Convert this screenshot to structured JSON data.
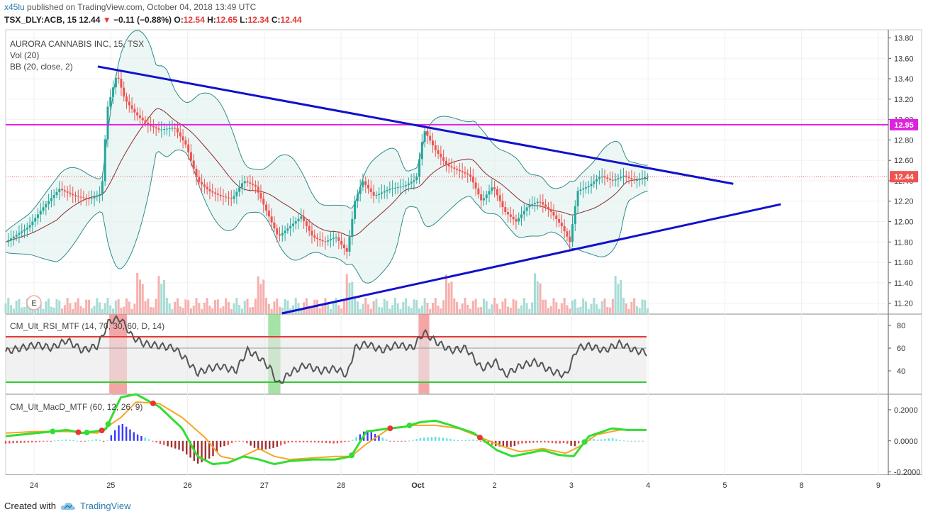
{
  "header": {
    "user": "x45lu",
    "published": "published on TradingView.com, October 04, 2018 13:49 UTC",
    "symbol": "TSX_DLY:ACB, 15",
    "last": "12.44",
    "change": "−0.11 (−0.88%)",
    "o_label": "O:",
    "o_value": "12.54",
    "h_label": "H:",
    "h_value": "12.65",
    "l_label": "L:",
    "l_value": "12.34",
    "c_label": "C:",
    "c_value": "12.44"
  },
  "main_legend": [
    "AURORA CANNABIS INC, 15, TSX",
    "Vol (20)",
    "BB (20, close, 2)"
  ],
  "rsi_legend": "CM_Ult_RSI_MTF (14, 70, 30, 60, D, 14)",
  "macd_legend": "CM_Ult_MacD_MTF (60, 12, 26, 9)",
  "earnings_badge": "E",
  "footer": {
    "created_with": "Created with",
    "brand": "TradingView"
  },
  "colors": {
    "up": "#26a69a",
    "down": "#ef5350",
    "trend": "#1111cc",
    "resistance": "#e020e0",
    "bb": "#2e8b8b",
    "rsi": "#555555",
    "macd_fast": "#33dd33",
    "macd_slow": "#f5a623"
  },
  "chart_data": [
    {
      "type": "candlestick",
      "title": "AURORA CANNABIS INC, 15, TSX",
      "x_ticks": [
        "24",
        "25",
        "26",
        "27",
        "28",
        "Oct",
        "2",
        "3",
        "4",
        "5",
        "8",
        "9"
      ],
      "y_ticks": [
        "11.20",
        "11.40",
        "11.60",
        "11.80",
        "12.00",
        "12.20",
        "12.40",
        "12.60",
        "12.80",
        "13.00",
        "13.20",
        "13.40",
        "13.60",
        "13.80"
      ],
      "ylim": [
        11.1,
        13.88
      ],
      "last_price_label": "12.44",
      "resistance_label": "12.95",
      "resistance_level": 12.95,
      "last_price": 12.44,
      "close_path": [
        [
          0,
          11.8
        ],
        [
          3,
          11.95
        ],
        [
          5,
          12.15
        ],
        [
          7,
          12.32
        ],
        [
          9,
          12.25
        ],
        [
          11,
          12.22
        ],
        [
          12.5,
          12.28
        ],
        [
          13.2,
          13.1
        ],
        [
          14.5,
          13.45
        ],
        [
          15.5,
          13.2
        ],
        [
          17,
          13.05
        ],
        [
          18.5,
          12.95
        ],
        [
          20,
          12.9
        ],
        [
          22,
          12.92
        ],
        [
          23.5,
          12.75
        ],
        [
          25,
          12.4
        ],
        [
          26.5,
          12.3
        ],
        [
          28,
          12.25
        ],
        [
          29.5,
          12.22
        ],
        [
          31,
          12.4
        ],
        [
          32.5,
          12.35
        ],
        [
          34,
          12.1
        ],
        [
          35.5,
          11.85
        ],
        [
          37,
          11.95
        ],
        [
          38.5,
          12.05
        ],
        [
          40,
          11.85
        ],
        [
          41.5,
          11.8
        ],
        [
          43,
          11.85
        ],
        [
          44.5,
          11.7
        ],
        [
          45.5,
          12.2
        ],
        [
          46.5,
          12.4
        ],
        [
          48,
          12.25
        ],
        [
          50,
          12.32
        ],
        [
          52,
          12.35
        ],
        [
          53.5,
          12.42
        ],
        [
          54.5,
          12.9
        ],
        [
          56,
          12.7
        ],
        [
          57.5,
          12.55
        ],
        [
          59,
          12.5
        ],
        [
          60.5,
          12.45
        ],
        [
          62,
          12.2
        ],
        [
          63.5,
          12.35
        ],
        [
          65,
          12.1
        ],
        [
          66.5,
          12.0
        ],
        [
          68,
          12.15
        ],
        [
          69.5,
          12.2
        ],
        [
          71,
          12.1
        ],
        [
          72.5,
          11.95
        ],
        [
          73.5,
          11.8
        ],
        [
          74.5,
          12.3
        ],
        [
          76,
          12.35
        ],
        [
          77.5,
          12.45
        ],
        [
          79,
          12.4
        ],
        [
          80.5,
          12.45
        ],
        [
          82,
          12.4
        ],
        [
          83.5,
          12.44
        ]
      ],
      "xlim_units": [
        0,
        115
      ],
      "day_positions": [
        3.7,
        13.7,
        23.7,
        33.7,
        43.7,
        53.7,
        63.7,
        73.7,
        83.7,
        93.7,
        103.7,
        113.7
      ]
    },
    {
      "type": "line",
      "title": "CM_Ult_RSI_MTF (14, 70, 30, 60, D, 14)",
      "y_ticks": [
        "40",
        "60",
        "80"
      ],
      "ylim": [
        20,
        90
      ],
      "bands": [
        30,
        60,
        70
      ],
      "values": [
        [
          0,
          57
        ],
        [
          2,
          60
        ],
        [
          4,
          63
        ],
        [
          6,
          60
        ],
        [
          8,
          67
        ],
        [
          10,
          58
        ],
        [
          12,
          62
        ],
        [
          13.5,
          84
        ],
        [
          15,
          86
        ],
        [
          16.5,
          70
        ],
        [
          18,
          64
        ],
        [
          20,
          62
        ],
        [
          22,
          60
        ],
        [
          23.5,
          50
        ],
        [
          25,
          38
        ],
        [
          26.5,
          42
        ],
        [
          28,
          44
        ],
        [
          30,
          40
        ],
        [
          31.5,
          58
        ],
        [
          33,
          52
        ],
        [
          34.5,
          42
        ],
        [
          35.5,
          28
        ],
        [
          37,
          38
        ],
        [
          39,
          45
        ],
        [
          41,
          40
        ],
        [
          43,
          42
        ],
        [
          44.5,
          36
        ],
        [
          45.5,
          60
        ],
        [
          47,
          64
        ],
        [
          49,
          58
        ],
        [
          51,
          63
        ],
        [
          53,
          60
        ],
        [
          54.5,
          74
        ],
        [
          56,
          66
        ],
        [
          58,
          58
        ],
        [
          60,
          60
        ],
        [
          62,
          42
        ],
        [
          64,
          48
        ],
        [
          65,
          36
        ],
        [
          67,
          44
        ],
        [
          69,
          48
        ],
        [
          71,
          40
        ],
        [
          73,
          36
        ],
        [
          74.5,
          60
        ],
        [
          76,
          62
        ],
        [
          78,
          58
        ],
        [
          80,
          64
        ],
        [
          82,
          58
        ],
        [
          83.5,
          56
        ]
      ],
      "highlight_zones": [
        [
          13.5,
          15.8,
          "red"
        ],
        [
          34.2,
          35.8,
          "green"
        ],
        [
          53.8,
          55.2,
          "red"
        ]
      ]
    },
    {
      "type": "line",
      "title": "CM_Ult_MacD_MTF (60, 12, 26, 9)",
      "y_ticks": [
        "0.2000",
        "0.0000",
        "-0.2000"
      ],
      "ylim": [
        -0.22,
        0.3
      ],
      "series": [
        {
          "values": [
            [
              0,
              0.03
            ],
            [
              4,
              0.05
            ],
            [
              8,
              0.07
            ],
            [
              10,
              0.05
            ],
            [
              13,
              0.07
            ],
            [
              15,
              0.28
            ],
            [
              17,
              0.3
            ],
            [
              20,
              0.22
            ],
            [
              23,
              0.08
            ],
            [
              25,
              -0.1
            ],
            [
              27,
              -0.15
            ],
            [
              29,
              -0.14
            ],
            [
              31,
              -0.1
            ],
            [
              33,
              -0.12
            ],
            [
              35,
              -0.15
            ],
            [
              37,
              -0.13
            ],
            [
              40,
              -0.12
            ],
            [
              43,
              -0.12
            ],
            [
              45,
              -0.1
            ],
            [
              47,
              0.06
            ],
            [
              50,
              0.08
            ],
            [
              52,
              0.09
            ],
            [
              54,
              0.12
            ],
            [
              56,
              0.13
            ],
            [
              58,
              0.1
            ],
            [
              61,
              0.05
            ],
            [
              64,
              -0.06
            ],
            [
              66,
              -0.1
            ],
            [
              68,
              -0.08
            ],
            [
              70,
              -0.06
            ],
            [
              72,
              -0.09
            ],
            [
              74,
              -0.1
            ],
            [
              76,
              0.03
            ],
            [
              79,
              0.08
            ],
            [
              81,
              0.07
            ],
            [
              83.5,
              0.07
            ]
          ]
        },
        {
          "values": [
            [
              0,
              0.05
            ],
            [
              4,
              0.06
            ],
            [
              8,
              0.06
            ],
            [
              12,
              0.05
            ],
            [
              15,
              0.15
            ],
            [
              17,
              0.25
            ],
            [
              20,
              0.24
            ],
            [
              23,
              0.15
            ],
            [
              26,
              0.02
            ],
            [
              28,
              -0.1
            ],
            [
              30,
              -0.12
            ],
            [
              33,
              -0.05
            ],
            [
              35,
              -0.1
            ],
            [
              37,
              -0.12
            ],
            [
              40,
              -0.11
            ],
            [
              43,
              -0.1
            ],
            [
              45,
              -0.1
            ],
            [
              47,
              -0.02
            ],
            [
              50,
              0.08
            ],
            [
              53,
              0.1
            ],
            [
              56,
              0.1
            ],
            [
              59,
              0.08
            ],
            [
              62,
              0.02
            ],
            [
              65,
              -0.04
            ],
            [
              67,
              -0.07
            ],
            [
              70,
              -0.05
            ],
            [
              73,
              -0.08
            ],
            [
              75,
              -0.03
            ],
            [
              77,
              0.04
            ],
            [
              80,
              0.07
            ],
            [
              83.5,
              0.07
            ]
          ]
        }
      ]
    }
  ]
}
